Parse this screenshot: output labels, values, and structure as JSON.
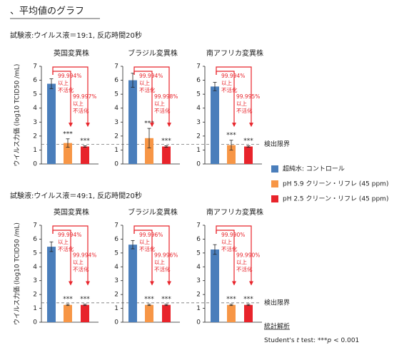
{
  "title": "、平均値のグラフ",
  "sections": [
    {
      "condition": "試験液:ウイルス液＝19:1, 反応時間20秒",
      "detection_limit": 1.4,
      "detection_limit_label": "検出限界"
    },
    {
      "condition": "試験液:ウイルス液＝49:1, 反応時間20秒",
      "detection_limit": 1.4,
      "detection_limit_label": "検出限界"
    }
  ],
  "legend": [
    {
      "name": "超純水: コントロール",
      "color": "#4a7ebb"
    },
    {
      "name": "pH 5.9 クリーン・リフレ (45 ppm)",
      "color": "#f79646"
    },
    {
      "name": "pH 2.5 クリーン・リフレ (45 ppm)",
      "color": "#e8242b"
    }
  ],
  "statistics": {
    "title": "統計解析",
    "text": [
      "Student's ",
      "t",
      " test: ***",
      "p",
      " < 0.001"
    ]
  },
  "chart_data": [
    {
      "type": "bar",
      "title": "英国変異株",
      "ylabel": "ウイルス力価 (log10 TCID50 /mL)",
      "ylim": [
        0,
        7
      ],
      "yticks": [
        0,
        1,
        2,
        3,
        4,
        5,
        6,
        7
      ],
      "values": [
        5.75,
        1.5,
        1.25
      ],
      "errors": [
        0.35,
        0.3,
        0.05
      ],
      "significance": [
        "***",
        "***"
      ],
      "annotations": [
        [
          "99.994%",
          "以上",
          "不活化"
        ],
        [
          "99.997%",
          "以上",
          "不活化"
        ]
      ]
    },
    {
      "type": "bar",
      "title": "ブラジル変異株",
      "ylim": [
        0,
        7
      ],
      "yticks": [
        0,
        1,
        2,
        3,
        4,
        5,
        6,
        7
      ],
      "values": [
        6.0,
        1.85,
        1.25
      ],
      "errors": [
        0.5,
        0.7,
        0.05
      ],
      "significance": [
        "***",
        "***"
      ],
      "annotations": [
        [
          "99.994%",
          "以上",
          "不活化"
        ],
        [
          "99.998%",
          "以上",
          "不活化"
        ]
      ]
    },
    {
      "type": "bar",
      "title": "南アフリカ変異株",
      "ylim": [
        0,
        7
      ],
      "yticks": [
        0,
        1,
        2,
        3,
        4,
        5,
        6,
        7
      ],
      "values": [
        5.55,
        1.35,
        1.25
      ],
      "errors": [
        0.3,
        0.35,
        0.05
      ],
      "significance": [
        "***",
        "***"
      ],
      "annotations": [
        [
          "99.994%",
          "以上",
          "不活化"
        ],
        [
          "99.995%",
          "以上",
          "不活化"
        ]
      ]
    },
    {
      "type": "bar",
      "title": "英国変異株",
      "ylabel": "ウイルス力価 (log10 TCID50 /mL)",
      "ylim": [
        0,
        7
      ],
      "yticks": [
        0,
        1,
        2,
        3,
        4,
        5,
        6,
        7
      ],
      "values": [
        5.45,
        1.25,
        1.25
      ],
      "errors": [
        0.35,
        0.05,
        0.05
      ],
      "significance": [
        "***",
        "***"
      ],
      "annotations": [
        [
          "99.994%",
          "以上",
          "不活化"
        ],
        [
          "99.994%",
          "以上",
          "不活化"
        ]
      ]
    },
    {
      "type": "bar",
      "title": "ブラジル変異株",
      "ylim": [
        0,
        7
      ],
      "yticks": [
        0,
        1,
        2,
        3,
        4,
        5,
        6,
        7
      ],
      "values": [
        5.6,
        1.25,
        1.25
      ],
      "errors": [
        0.3,
        0.05,
        0.05
      ],
      "significance": [
        "***",
        "***"
      ],
      "annotations": [
        [
          "99.996%",
          "以上",
          "不活化"
        ],
        [
          "99.996%",
          "以上",
          "不活化"
        ]
      ]
    },
    {
      "type": "bar",
      "title": "南アフリカ変異株",
      "ylim": [
        0,
        7
      ],
      "yticks": [
        0,
        1,
        2,
        3,
        4,
        5,
        6,
        7
      ],
      "values": [
        5.25,
        1.25,
        1.25
      ],
      "errors": [
        0.35,
        0.05,
        0.05
      ],
      "significance": [
        "***",
        "***"
      ],
      "annotations": [
        [
          "99.990%",
          "以上",
          "不活化"
        ],
        [
          "99.990%",
          "以上",
          "不活化"
        ]
      ]
    }
  ]
}
